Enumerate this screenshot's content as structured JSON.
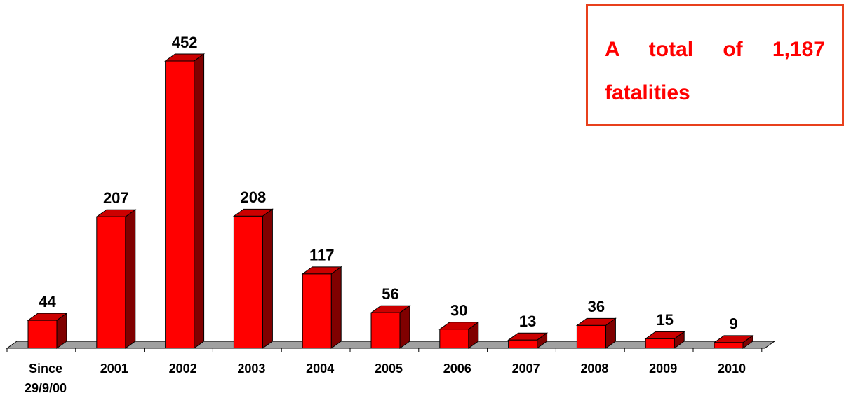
{
  "chart_data": {
    "type": "bar3d",
    "categories": [
      "Since 29/9/00",
      "2001",
      "2002",
      "2003",
      "2004",
      "2005",
      "2006",
      "2007",
      "2008",
      "2009",
      "2010"
    ],
    "values": [
      44,
      207,
      452,
      208,
      117,
      56,
      30,
      13,
      36,
      15,
      9
    ],
    "color": "#ff0000",
    "annotation": "A total of 1,187 fatalities"
  }
}
